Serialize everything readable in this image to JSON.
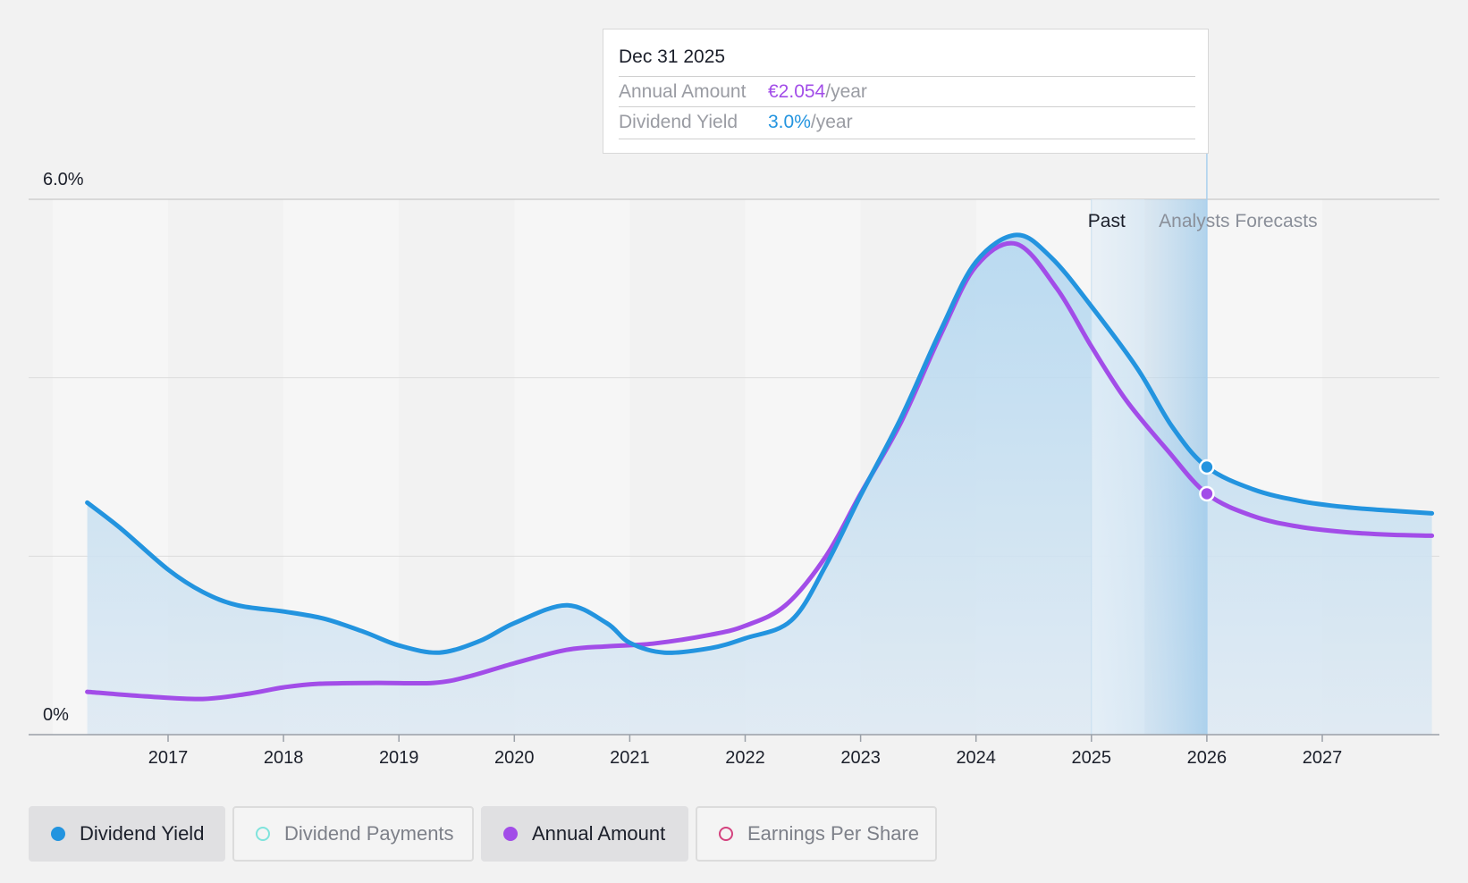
{
  "tooltip": {
    "date": "Dec 31 2025",
    "rows": [
      {
        "label": "Annual Amount",
        "value": "€2.054",
        "unit": "/year",
        "color": "#a24de8"
      },
      {
        "label": "Dividend Yield",
        "value": "3.0%",
        "unit": "/year",
        "color": "#2394df"
      }
    ]
  },
  "legend": [
    {
      "label": "Dividend Yield",
      "color": "#2394df",
      "filled": true,
      "active": true
    },
    {
      "label": "Dividend Payments",
      "color": "#7fe3dc",
      "filled": false,
      "active": false
    },
    {
      "label": "Annual Amount",
      "color": "#a24de8",
      "filled": true,
      "active": true
    },
    {
      "label": "Earnings Per Share",
      "color": "#d4427e",
      "filled": false,
      "active": false
    }
  ],
  "chart_data": {
    "type": "line",
    "y_ticks": [
      "6.0%",
      "0%"
    ],
    "ylim": [
      0,
      6.0
    ],
    "xlim": [
      2016.25,
      2027.95
    ],
    "x_ticks": [
      2017,
      2018,
      2019,
      2020,
      2021,
      2022,
      2023,
      2024,
      2025,
      2026,
      2027
    ],
    "grid": true,
    "past_label": "Past",
    "forecast_label": "Analysts Forecasts",
    "past_end": 2025.0,
    "forecast_start": 2026.0,
    "highlight_x": 2026.0,
    "series": [
      {
        "name": "Dividend Yield",
        "color": "#2394df",
        "points": [
          [
            2016.3,
            2.6
          ],
          [
            2016.6,
            2.3
          ],
          [
            2017.0,
            1.85
          ],
          [
            2017.3,
            1.6
          ],
          [
            2017.6,
            1.45
          ],
          [
            2018.0,
            1.38
          ],
          [
            2018.35,
            1.3
          ],
          [
            2018.7,
            1.15
          ],
          [
            2019.0,
            1.0
          ],
          [
            2019.35,
            0.92
          ],
          [
            2019.7,
            1.05
          ],
          [
            2020.0,
            1.25
          ],
          [
            2020.45,
            1.45
          ],
          [
            2020.8,
            1.25
          ],
          [
            2021.0,
            1.03
          ],
          [
            2021.3,
            0.92
          ],
          [
            2021.7,
            0.97
          ],
          [
            2022.0,
            1.08
          ],
          [
            2022.4,
            1.28
          ],
          [
            2022.7,
            1.9
          ],
          [
            2023.0,
            2.68
          ],
          [
            2023.35,
            3.55
          ],
          [
            2023.7,
            4.55
          ],
          [
            2024.0,
            5.3
          ],
          [
            2024.35,
            5.6
          ],
          [
            2024.65,
            5.35
          ],
          [
            2025.0,
            4.8
          ],
          [
            2025.4,
            4.1
          ],
          [
            2025.7,
            3.45
          ],
          [
            2026.0,
            3.0
          ],
          [
            2026.4,
            2.75
          ],
          [
            2026.8,
            2.62
          ],
          [
            2027.2,
            2.55
          ],
          [
            2027.6,
            2.51
          ],
          [
            2027.95,
            2.48
          ]
        ]
      },
      {
        "name": "Annual Amount",
        "color": "#a24de8",
        "points": [
          [
            2016.3,
            0.48
          ],
          [
            2016.8,
            0.43
          ],
          [
            2017.3,
            0.4
          ],
          [
            2017.7,
            0.46
          ],
          [
            2018.0,
            0.53
          ],
          [
            2018.3,
            0.57
          ],
          [
            2018.8,
            0.58
          ],
          [
            2019.3,
            0.58
          ],
          [
            2019.6,
            0.65
          ],
          [
            2020.0,
            0.8
          ],
          [
            2020.45,
            0.95
          ],
          [
            2020.8,
            0.99
          ],
          [
            2021.2,
            1.02
          ],
          [
            2021.7,
            1.12
          ],
          [
            2022.0,
            1.22
          ],
          [
            2022.35,
            1.45
          ],
          [
            2022.7,
            2.0
          ],
          [
            2023.0,
            2.7
          ],
          [
            2023.35,
            3.5
          ],
          [
            2023.7,
            4.5
          ],
          [
            2024.0,
            5.25
          ],
          [
            2024.35,
            5.5
          ],
          [
            2024.7,
            5.0
          ],
          [
            2025.0,
            4.35
          ],
          [
            2025.3,
            3.75
          ],
          [
            2025.65,
            3.2
          ],
          [
            2026.0,
            2.7
          ],
          [
            2026.4,
            2.45
          ],
          [
            2026.8,
            2.33
          ],
          [
            2027.2,
            2.27
          ],
          [
            2027.6,
            2.24
          ],
          [
            2027.95,
            2.23
          ]
        ]
      }
    ]
  }
}
